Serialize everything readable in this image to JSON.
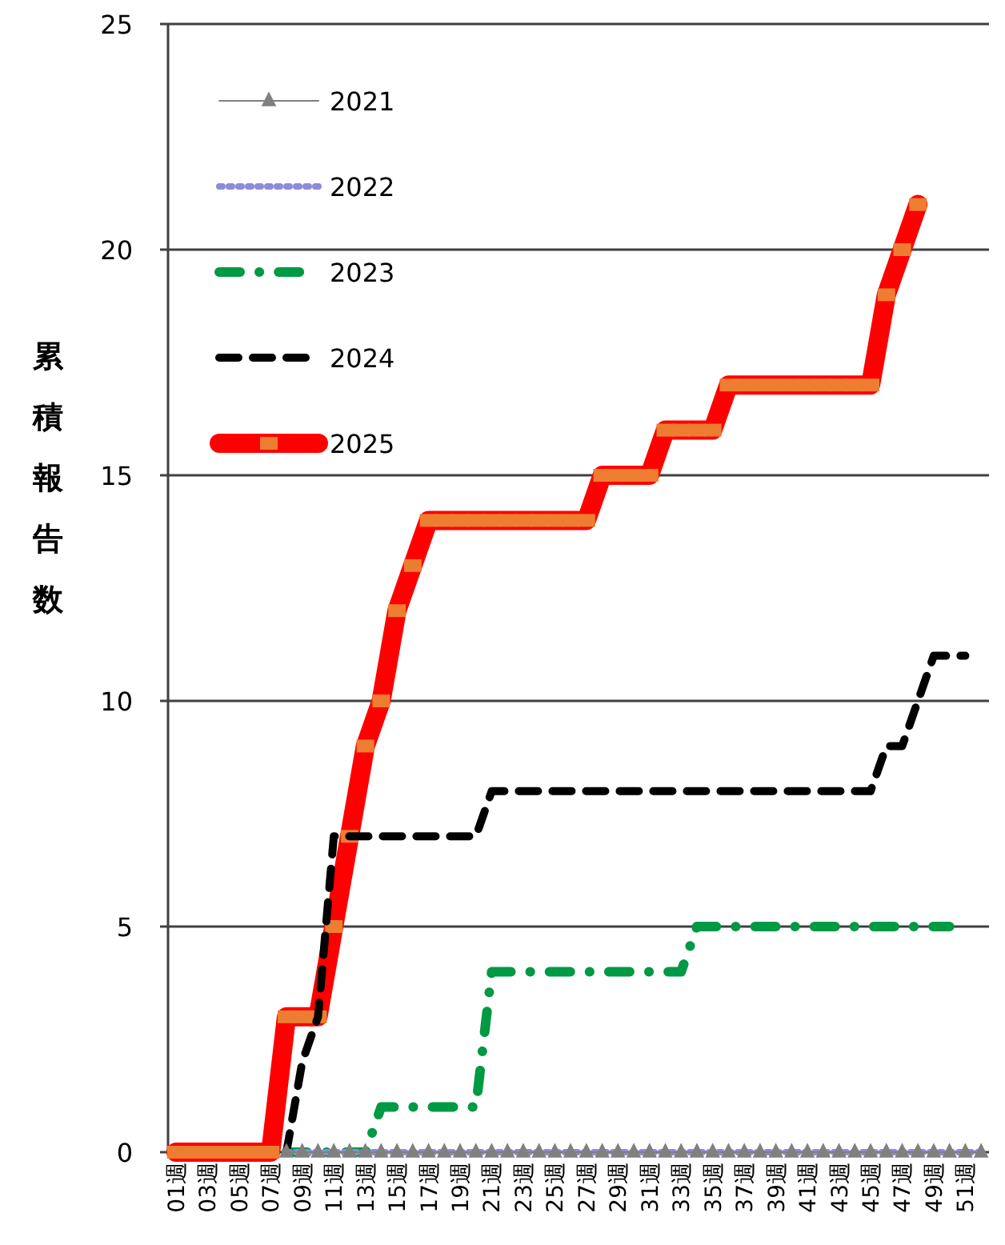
{
  "chart_data": {
    "type": "line",
    "ylabel": "累積報告数",
    "categories": [
      "01週",
      null,
      "03週",
      null,
      "05週",
      null,
      "07週",
      null,
      "09週",
      null,
      "11週",
      null,
      "13週",
      null,
      "15週",
      null,
      "17週",
      null,
      "19週",
      null,
      "21週",
      null,
      "23週",
      null,
      "25週",
      null,
      "27週",
      null,
      "29週",
      null,
      "31週",
      null,
      "33週",
      null,
      "35週",
      null,
      "37週",
      null,
      "39週",
      null,
      "41週",
      null,
      "43週",
      null,
      "45週",
      null,
      "47週",
      null,
      "49週",
      null,
      "51週",
      null
    ],
    "ylim": [
      0,
      25
    ],
    "yticks": [
      0,
      5,
      10,
      15,
      20,
      25
    ],
    "grid": "y",
    "legend": "top left",
    "series": [
      {
        "name": "2021",
        "color": "#808080",
        "marker": "triangle",
        "line_style": "solid",
        "values": [
          null,
          null,
          null,
          null,
          null,
          null,
          null,
          0,
          0,
          0,
          0,
          0,
          0,
          0,
          0,
          0,
          0,
          0,
          0,
          0,
          0,
          0,
          0,
          0,
          0,
          0,
          0,
          0,
          0,
          0,
          0,
          0,
          0,
          0,
          0,
          0,
          0,
          0,
          0,
          0,
          0,
          0,
          0,
          0,
          0,
          0,
          0,
          0,
          0,
          0,
          0,
          0
        ]
      },
      {
        "name": "2022",
        "color": "#8c8cd8",
        "marker": "none",
        "line_style": "dotted",
        "values": [
          null,
          null,
          null,
          null,
          null,
          null,
          null,
          0,
          0,
          0,
          0,
          0,
          0,
          0,
          0,
          0,
          0,
          0,
          0,
          0,
          0,
          0,
          0,
          0,
          0,
          0,
          0,
          0,
          0,
          0,
          0,
          0,
          0,
          0,
          0,
          0,
          0,
          0,
          0,
          0,
          0,
          0,
          0,
          0,
          0,
          0,
          0,
          0,
          0,
          0,
          0,
          0
        ]
      },
      {
        "name": "2023",
        "color": "#009944",
        "marker": "none",
        "line_style": "dashdot",
        "values": [
          null,
          null,
          null,
          null,
          null,
          null,
          null,
          0,
          0,
          0,
          0,
          0,
          0,
          1,
          1,
          1,
          1,
          1,
          1,
          1,
          4,
          4,
          4,
          4,
          4,
          4,
          4,
          4,
          4,
          4,
          4,
          4,
          4,
          5,
          5,
          5,
          5,
          5,
          5,
          5,
          5,
          5,
          5,
          5,
          5,
          5,
          5,
          5,
          5,
          5,
          null,
          null
        ]
      },
      {
        "name": "2024",
        "color": "#000000",
        "marker": "none",
        "line_style": "dashed",
        "values": [
          null,
          null,
          null,
          null,
          null,
          null,
          null,
          0,
          2,
          3,
          7,
          7,
          7,
          7,
          7,
          7,
          7,
          7,
          7,
          7,
          8,
          8,
          8,
          8,
          8,
          8,
          8,
          8,
          8,
          8,
          8,
          8,
          8,
          8,
          8,
          8,
          8,
          8,
          8,
          8,
          8,
          8,
          8,
          8,
          8,
          9,
          9,
          10,
          11,
          11,
          11,
          null
        ]
      },
      {
        "name": "2025",
        "color": "#ff0000",
        "marker": "square",
        "line_style": "solid",
        "colors": [
          "#ed7d31",
          "#ed7d31",
          "#ed7d31",
          "#ed7d31",
          "#ed7d31",
          "#ed7d31",
          "#ed7d31",
          "#ed7d31",
          "#ed7d31",
          "#ed7d31",
          "#ed7d31",
          "#ed7d31",
          "#ed7d31",
          "#ed7d31",
          "#ed7d31",
          "#ed7d31",
          "#ed7d31",
          "#ed7d31",
          "#ed7d31",
          "#ed7d31",
          "#ed7d31",
          "#ed7d31",
          "#ed7d31",
          "#ed7d31",
          "#ed7d31",
          "#ed7d31",
          "#ed7d31",
          "#ed7d31",
          "#ed7d31",
          "#ed7d31",
          "#ed7d31",
          "#ed7d31",
          "#ed7d31",
          "#ed7d31",
          "#ed7d31",
          "#ed7d31",
          "#ed7d31",
          "#ed7d31",
          "#ed7d31",
          "#ed7d31",
          "#ed7d31",
          "#ed7d31",
          "#ed7d31",
          "#ed7d31",
          "#ed7d31",
          "#ed7d31",
          "#ed7d31",
          "#ed7d31",
          null,
          null,
          null,
          null
        ],
        "values": [
          0,
          0,
          0,
          0,
          0,
          0,
          0,
          3,
          3,
          3,
          5,
          7,
          9,
          10,
          12,
          13,
          14,
          14,
          14,
          14,
          14,
          14,
          14,
          14,
          14,
          14,
          14,
          15,
          15,
          15,
          15,
          16,
          16,
          16,
          16,
          17,
          17,
          17,
          17,
          17,
          17,
          17,
          17,
          17,
          17,
          19,
          20,
          21,
          null,
          null,
          null,
          null
        ]
      }
    ]
  }
}
